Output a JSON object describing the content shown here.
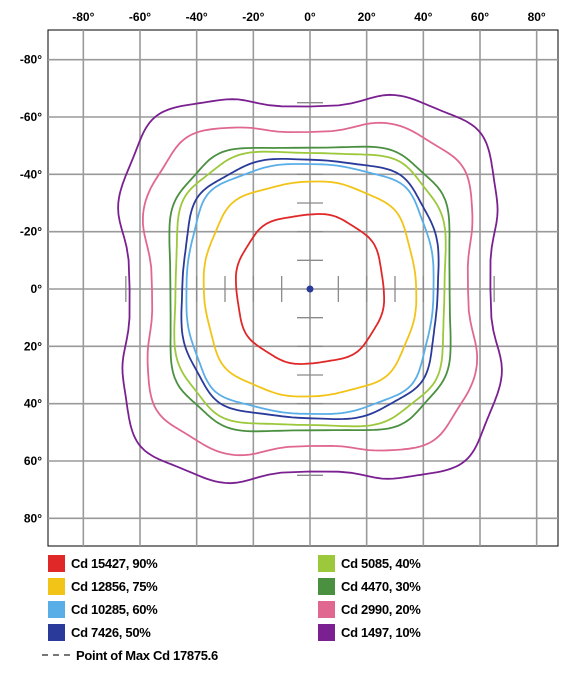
{
  "chart_data": {
    "type": "contour",
    "xlim": [
      -90,
      90
    ],
    "ylim": [
      -90,
      90
    ],
    "x_ticks": [
      "-80°",
      "-60°",
      "-40°",
      "-20°",
      "0°",
      "20°",
      "40°",
      "60°",
      "80°"
    ],
    "y_ticks": [
      "-80°",
      "-60°",
      "-40°",
      "-20°",
      "0°",
      "20°",
      "40°",
      "60°",
      "80°"
    ],
    "x_tick_values": [
      -80,
      -60,
      -40,
      -20,
      0,
      20,
      40,
      60,
      80
    ],
    "y_tick_values": [
      -80,
      -60,
      -40,
      -20,
      0,
      20,
      40,
      60,
      80
    ],
    "grid": true,
    "max_point": [
      0,
      0
    ],
    "series": [
      {
        "name": "Cd 15427, 90%",
        "color": "#e02828",
        "half_width": 26,
        "half_height": 26,
        "pow": 2.3,
        "bump": 0
      },
      {
        "name": "Cd 12856, 75%",
        "color": "#f2c418",
        "half_width": 37,
        "half_height": 37,
        "pow": 2.6,
        "bump": 0
      },
      {
        "name": "Cd 10285, 60%",
        "color": "#5aaee8",
        "half_width": 43,
        "half_height": 43,
        "pow": 3.0,
        "bump": 0
      },
      {
        "name": "Cd 7426, 50%",
        "color": "#2a3a9a",
        "half_width": 45,
        "half_height": 45,
        "pow": 3.0,
        "bump": 0
      },
      {
        "name": "Cd 5085, 40%",
        "color": "#9cc83c",
        "half_width": 48,
        "half_height": 48,
        "pow": 3.2,
        "bump": 0
      },
      {
        "name": "Cd 4470, 30%",
        "color": "#4a9040",
        "half_width": 50,
        "half_height": 50,
        "pow": 3.4,
        "bump": 0
      },
      {
        "name": "Cd 2990, 20%",
        "color": "#e06890",
        "half_width": 59,
        "half_height": 58,
        "pow": 3.6,
        "bump": 3
      },
      {
        "name": "Cd 1497, 10%",
        "color": "#7a2090",
        "half_width": 68,
        "half_height": 68,
        "pow": 3.8,
        "bump": 5
      }
    ]
  },
  "legend": {
    "items": [
      {
        "label": "Cd 15427, 90%",
        "color": "#e02828"
      },
      {
        "label": "Cd 12856, 75%",
        "color": "#f2c418"
      },
      {
        "label": "Cd 10285, 60%",
        "color": "#5aaee8"
      },
      {
        "label": "Cd 7426, 50%",
        "color": "#2a3a9a"
      },
      {
        "label": "Cd 5085, 40%",
        "color": "#9cc83c"
      },
      {
        "label": "Cd 4470, 30%",
        "color": "#4a9040"
      },
      {
        "label": "Cd 2990, 20%",
        "color": "#e06890"
      },
      {
        "label": "Cd 1497, 10%",
        "color": "#7a2090"
      }
    ],
    "max_point_label": "Point of Max Cd 17875.6"
  }
}
